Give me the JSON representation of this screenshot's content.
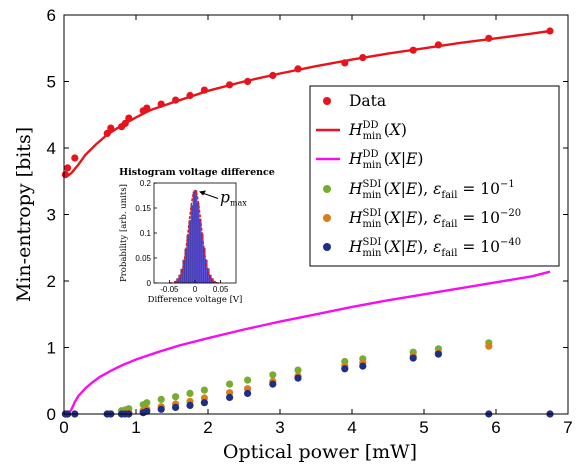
{
  "chart_data": {
    "type": "scatter",
    "xlabel": "Optical power [mW]",
    "ylabel": "Min-entropy [bits]",
    "xlim": [
      0,
      7
    ],
    "ylim": [
      0,
      6
    ],
    "xticks": [
      "0",
      "1",
      "2",
      "3",
      "4",
      "5",
      "6",
      "7"
    ],
    "yticks": [
      "0",
      "1",
      "2",
      "3",
      "4",
      "5",
      "6"
    ],
    "grid": false,
    "legend_position": "right",
    "series": [
      {
        "name": "Data",
        "kind": "points",
        "color": "#e8141b",
        "x": [
          0.02,
          0.05,
          0.15,
          0.6,
          0.65,
          0.8,
          0.85,
          0.9,
          1.1,
          1.15,
          1.35,
          1.55,
          1.75,
          1.95,
          2.3,
          2.55,
          2.9,
          3.25,
          3.9,
          4.15,
          4.85,
          5.2,
          5.9,
          6.75
        ],
        "y": [
          3.6,
          3.7,
          3.85,
          4.22,
          4.3,
          4.32,
          4.37,
          4.45,
          4.56,
          4.6,
          4.66,
          4.72,
          4.79,
          4.87,
          4.95,
          5.0,
          5.09,
          5.19,
          5.28,
          5.36,
          5.47,
          5.55,
          5.65,
          5.76
        ]
      },
      {
        "name": "H_min^DD(X)",
        "kind": "line",
        "color": "#e8141b",
        "x": [
          0,
          0.05,
          0.1,
          0.2,
          0.3,
          0.45,
          0.6,
          0.8,
          1.0,
          1.2,
          1.5,
          2.0,
          2.5,
          3.0,
          3.5,
          4.0,
          4.5,
          5.0,
          5.5,
          6.0,
          6.5,
          6.75
        ],
        "y": [
          3.57,
          3.58,
          3.62,
          3.75,
          3.9,
          4.06,
          4.2,
          4.34,
          4.46,
          4.57,
          4.68,
          4.86,
          5.0,
          5.12,
          5.23,
          5.33,
          5.42,
          5.5,
          5.58,
          5.65,
          5.72,
          5.76
        ]
      },
      {
        "name": "H_min^DD(X|E)",
        "kind": "line",
        "color": "#f50ff0",
        "x": [
          0.05,
          0.1,
          0.15,
          0.2,
          0.3,
          0.4,
          0.5,
          0.65,
          0.8,
          1.0,
          1.3,
          1.6,
          2.0,
          2.5,
          3.0,
          3.5,
          4.0,
          4.5,
          5.0,
          5.5,
          6.0,
          6.5,
          6.75
        ],
        "y": [
          0.0,
          0.06,
          0.18,
          0.27,
          0.39,
          0.48,
          0.56,
          0.65,
          0.73,
          0.82,
          0.93,
          1.03,
          1.14,
          1.27,
          1.39,
          1.5,
          1.61,
          1.71,
          1.8,
          1.89,
          1.98,
          2.07,
          2.14
        ]
      },
      {
        "name": "H_min^SDI(X|E), ε_fail = 10^-1",
        "kind": "points",
        "color": "#77ac30",
        "x": [
          0.02,
          0.05,
          0.15,
          0.6,
          0.65,
          0.8,
          0.85,
          0.9,
          1.1,
          1.15,
          1.35,
          1.55,
          1.75,
          1.95,
          2.3,
          2.55,
          2.9,
          3.25,
          3.9,
          4.15,
          4.85,
          5.2,
          5.9,
          6.75
        ],
        "y": [
          0.0,
          0.0,
          0.0,
          0.0,
          0.0,
          0.05,
          0.06,
          0.08,
          0.14,
          0.17,
          0.22,
          0.26,
          0.31,
          0.36,
          0.45,
          0.51,
          0.59,
          0.66,
          0.79,
          0.83,
          0.93,
          0.98,
          1.07,
          0.0
        ]
      },
      {
        "name": "H_min^SDI(X|E), ε_fail = 10^-20",
        "kind": "points",
        "color": "#de7d15",
        "x": [
          0.02,
          0.05,
          0.15,
          0.6,
          0.65,
          0.8,
          0.85,
          0.9,
          1.1,
          1.15,
          1.35,
          1.55,
          1.75,
          1.95,
          2.3,
          2.55,
          2.9,
          3.25,
          3.9,
          4.15,
          4.85,
          5.2,
          5.9,
          6.75
        ],
        "y": [
          0.0,
          0.0,
          0.0,
          0.0,
          0.0,
          0.0,
          0.01,
          0.02,
          0.05,
          0.07,
          0.11,
          0.15,
          0.19,
          0.24,
          0.32,
          0.38,
          0.49,
          0.57,
          0.72,
          0.77,
          0.87,
          0.92,
          1.02,
          0.0
        ]
      },
      {
        "name": "H_min^SDI(X|E), ε_fail = 10^-40",
        "kind": "points",
        "color": "#1f2f86",
        "x": [
          0.02,
          0.05,
          0.15,
          0.6,
          0.65,
          0.8,
          0.85,
          0.9,
          1.1,
          1.15,
          1.35,
          1.55,
          1.75,
          1.95,
          2.3,
          2.55,
          2.9,
          3.25,
          3.9,
          4.15,
          4.85,
          5.2,
          5.9,
          6.75
        ],
        "y": [
          0.0,
          0.0,
          0.0,
          0.0,
          0.0,
          0.0,
          0.0,
          0.0,
          0.02,
          0.04,
          0.07,
          0.1,
          0.13,
          0.17,
          0.25,
          0.31,
          0.45,
          0.54,
          0.68,
          0.72,
          0.84,
          0.9,
          0.0,
          0.0
        ]
      }
    ],
    "inset": {
      "type": "bar",
      "title": "Histogram voltage difference",
      "xlabel": "Difference voltage [V]",
      "ylabel": "Probability [arb. units]",
      "xlim": [
        -0.08,
        0.08
      ],
      "ylim": [
        0,
        0.2
      ],
      "xticks": [
        "-0.05",
        "0",
        "0.05"
      ],
      "yticks": [
        "0",
        "0.05",
        "0.1",
        "0.15",
        "0.2"
      ],
      "annotation": "p_max",
      "bar_color": "#5a4fd6",
      "fit_color": "#e8141b",
      "bins_x": [
        -0.038,
        -0.034,
        -0.03,
        -0.026,
        -0.022,
        -0.018,
        -0.014,
        -0.01,
        -0.006,
        -0.002,
        0.002,
        0.006,
        0.01,
        0.014,
        0.018,
        0.022,
        0.026,
        0.03,
        0.034,
        0.038
      ],
      "bins_y": [
        0.004,
        0.009,
        0.016,
        0.028,
        0.046,
        0.068,
        0.095,
        0.125,
        0.155,
        0.182,
        0.185,
        0.16,
        0.128,
        0.098,
        0.07,
        0.046,
        0.029,
        0.016,
        0.009,
        0.004
      ]
    }
  }
}
